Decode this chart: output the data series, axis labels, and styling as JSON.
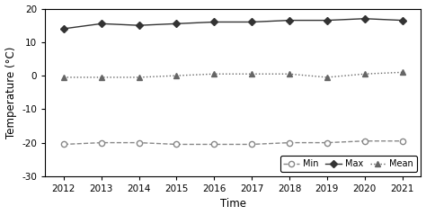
{
  "years": [
    2012,
    2013,
    2014,
    2015,
    2016,
    2017,
    2018,
    2019,
    2020,
    2021
  ],
  "max_vals": [
    14.0,
    15.5,
    15.0,
    15.5,
    16.0,
    16.0,
    16.5,
    16.5,
    17.0,
    16.5
  ],
  "mean_vals": [
    -0.5,
    -0.5,
    -0.5,
    0.0,
    0.5,
    0.5,
    0.5,
    -0.5,
    0.5,
    1.0
  ],
  "min_vals": [
    -20.5,
    -20.0,
    -20.0,
    -20.5,
    -20.5,
    -20.5,
    -20.0,
    -20.0,
    -19.5,
    -19.5
  ],
  "ylim": [
    -30,
    20
  ],
  "yticks": [
    -30,
    -20,
    -10,
    0,
    10,
    20
  ],
  "xlabel": "Time",
  "ylabel": "Temperature (°C)",
  "legend_labels": [
    "Min",
    "Max",
    "Mean"
  ],
  "max_color": "#333333",
  "mean_color": "#666666",
  "min_color": "#888888",
  "bg_color": "#ffffff",
  "figsize": [
    4.74,
    2.39
  ],
  "dpi": 100
}
